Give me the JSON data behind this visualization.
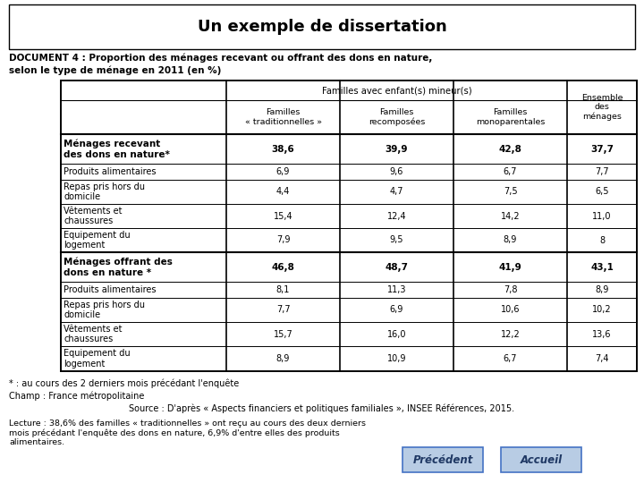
{
  "title": "Un exemple de dissertation",
  "doc_title_line1": "DOCUMENT 4 : Proportion des ménages recevant ou offrant des dons en nature,",
  "doc_title_line2": "selon le type de ménage en 2011 (en %)",
  "col_header_top": "Familles avec enfant(s) mineur(s)",
  "col_headers": [
    "Familles\n« traditionnelles »",
    "Familles\nrecomposées",
    "Familles\nmonoparentales",
    "Ensemble\ndes\nménages"
  ],
  "rows": [
    {
      "label": "Ménages recevant\ndes dons en nature*",
      "bold": true,
      "values": [
        "38,6",
        "39,9",
        "42,8",
        "37,7"
      ]
    },
    {
      "label": "Produits alimentaires",
      "bold": false,
      "values": [
        "6,9",
        "9,6",
        "6,7",
        "7,7"
      ]
    },
    {
      "label": "Repas pris hors du\ndomicile",
      "bold": false,
      "values": [
        "4,4",
        "4,7",
        "7,5",
        "6,5"
      ]
    },
    {
      "label": "Vêtements et\nchaussures",
      "bold": false,
      "values": [
        "15,4",
        "12,4",
        "14,2",
        "11,0"
      ]
    },
    {
      "label": "Equipement du\nlogement",
      "bold": false,
      "values": [
        "7,9",
        "9,5",
        "8,9",
        "8"
      ]
    },
    {
      "label": "Ménages offrant des\ndons en nature *",
      "bold": true,
      "values": [
        "46,8",
        "48,7",
        "41,9",
        "43,1"
      ]
    },
    {
      "label": "Produits alimentaires",
      "bold": false,
      "values": [
        "8,1",
        "11,3",
        "7,8",
        "8,9"
      ]
    },
    {
      "label": "Repas pris hors du\ndomicile",
      "bold": false,
      "values": [
        "7,7",
        "6,9",
        "10,6",
        "10,2"
      ]
    },
    {
      "label": "Vêtements et\nchaussures",
      "bold": false,
      "values": [
        "15,7",
        "16,0",
        "12,2",
        "13,6"
      ]
    },
    {
      "label": "Equipement du\nlogement",
      "bold": false,
      "values": [
        "8,9",
        "10,9",
        "6,7",
        "7,4"
      ]
    }
  ],
  "footnote1": "* : au cours des 2 derniers mois précédant l'enquête",
  "footnote2": "Champ : France métropolitaine",
  "footnote3": "Source : D'après « Aspects financiers et politiques familiales », INSEE Références, 2015.",
  "lecture": "Lecture : 38,6% des familles « traditionnelles » ont reçu au cours des deux derniers\nmois précédant l'enquête des dons en nature, 6,9% d'entre elles des produits\nalimentaires.",
  "btn1_text": "Précédent",
  "btn2_text": "Accueil",
  "bg_color": "#ffffff",
  "btn_bg": "#b8cce4",
  "btn_border": "#4472c4",
  "btn_text_color": "#1f3864"
}
